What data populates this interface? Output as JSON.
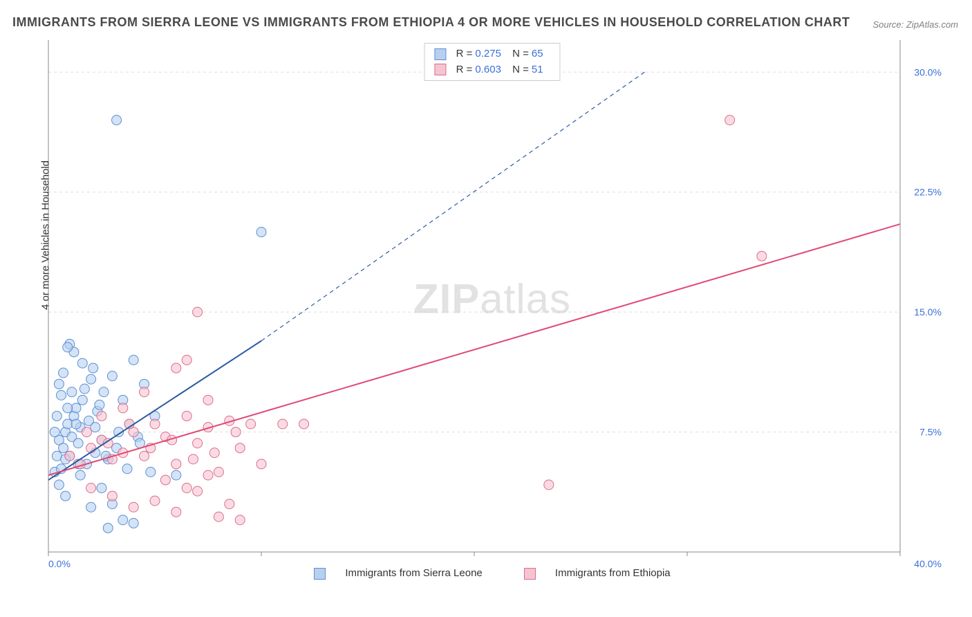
{
  "title": "IMMIGRANTS FROM SIERRA LEONE VS IMMIGRANTS FROM ETHIOPIA 4 OR MORE VEHICLES IN HOUSEHOLD CORRELATION CHART",
  "source": "Source: ZipAtlas.com",
  "ylabel": "4 or more Vehicles in Household",
  "watermark_bold": "ZIP",
  "watermark_rest": "atlas",
  "chart": {
    "type": "scatter",
    "xlim": [
      0,
      40
    ],
    "ylim": [
      0,
      32
    ],
    "x_ticks": [
      0,
      10,
      20,
      30,
      40
    ],
    "x_tick_labels": [
      "0.0%",
      "",
      "",
      "",
      "40.0%"
    ],
    "y_ticks": [
      7.5,
      15.0,
      22.5,
      30.0
    ],
    "y_tick_labels": [
      "7.5%",
      "15.0%",
      "22.5%",
      "30.0%"
    ],
    "grid_color": "#dddddd",
    "axis_color": "#888888",
    "background_color": "#ffffff",
    "tick_label_color": "#3a6fd8",
    "tick_label_fontsize": 14,
    "series": [
      {
        "name": "Immigrants from Sierra Leone",
        "color_fill": "#b8d0ee",
        "color_stroke": "#5a8fd6",
        "marker_radius": 7,
        "R": "0.275",
        "N": "65",
        "trend": {
          "x1": 0,
          "y1": 4.5,
          "x2": 10,
          "y2": 13.2,
          "x2_ext": 28,
          "y2_ext": 30,
          "solid_until_x": 10,
          "color": "#2c5aa0",
          "width": 2
        },
        "points": [
          [
            0.3,
            5.0
          ],
          [
            0.4,
            6.0
          ],
          [
            0.5,
            7.0
          ],
          [
            0.6,
            5.2
          ],
          [
            0.7,
            6.5
          ],
          [
            0.8,
            7.5
          ],
          [
            0.9,
            8.0
          ],
          [
            1.0,
            6.0
          ],
          [
            1.1,
            7.2
          ],
          [
            1.2,
            8.5
          ],
          [
            1.3,
            9.0
          ],
          [
            1.4,
            6.8
          ],
          [
            1.5,
            7.8
          ],
          [
            1.6,
            9.5
          ],
          [
            1.7,
            10.2
          ],
          [
            1.8,
            5.5
          ],
          [
            1.9,
            8.2
          ],
          [
            2.0,
            10.8
          ],
          [
            2.1,
            11.5
          ],
          [
            2.2,
            6.2
          ],
          [
            2.3,
            8.8
          ],
          [
            2.4,
            9.2
          ],
          [
            2.5,
            7.0
          ],
          [
            2.6,
            10.0
          ],
          [
            2.8,
            5.8
          ],
          [
            3.0,
            11.0
          ],
          [
            3.2,
            6.5
          ],
          [
            3.5,
            9.5
          ],
          [
            3.8,
            8.0
          ],
          [
            4.0,
            12.0
          ],
          [
            4.2,
            7.2
          ],
          [
            4.5,
            10.5
          ],
          [
            4.8,
            5.0
          ],
          [
            5.0,
            8.5
          ],
          [
            1.0,
            13.0
          ],
          [
            1.2,
            12.5
          ],
          [
            0.9,
            12.8
          ],
          [
            2.5,
            4.0
          ],
          [
            3.0,
            3.0
          ],
          [
            2.8,
            1.5
          ],
          [
            3.5,
            2.0
          ],
          [
            2.0,
            2.8
          ],
          [
            4.0,
            1.8
          ],
          [
            0.5,
            4.2
          ],
          [
            0.8,
            3.5
          ],
          [
            1.5,
            4.8
          ],
          [
            3.2,
            27.0
          ],
          [
            0.6,
            9.8
          ],
          [
            0.7,
            11.2
          ],
          [
            0.9,
            9.0
          ],
          [
            1.1,
            10.0
          ],
          [
            1.3,
            8.0
          ],
          [
            1.6,
            11.8
          ],
          [
            2.2,
            7.8
          ],
          [
            2.7,
            6.0
          ],
          [
            3.3,
            7.5
          ],
          [
            3.7,
            5.2
          ],
          [
            4.3,
            6.8
          ],
          [
            6.0,
            4.8
          ],
          [
            0.4,
            8.5
          ],
          [
            0.3,
            7.5
          ],
          [
            0.5,
            10.5
          ],
          [
            10.0,
            20.0
          ],
          [
            0.8,
            5.8
          ],
          [
            1.4,
            5.5
          ]
        ]
      },
      {
        "name": "Immigrants from Ethiopia",
        "color_fill": "#f5c4d1",
        "color_stroke": "#e06a8c",
        "marker_radius": 7,
        "R": "0.603",
        "N": "51",
        "trend": {
          "x1": 0,
          "y1": 4.8,
          "x2": 40,
          "y2": 20.5,
          "color": "#e04a74",
          "width": 2
        },
        "points": [
          [
            1.0,
            6.0
          ],
          [
            1.5,
            5.5
          ],
          [
            2.0,
            6.5
          ],
          [
            2.5,
            7.0
          ],
          [
            3.0,
            5.8
          ],
          [
            3.5,
            6.2
          ],
          [
            4.0,
            7.5
          ],
          [
            4.5,
            6.0
          ],
          [
            5.0,
            8.0
          ],
          [
            5.5,
            7.2
          ],
          [
            6.0,
            5.5
          ],
          [
            6.5,
            8.5
          ],
          [
            7.0,
            6.8
          ],
          [
            7.5,
            7.8
          ],
          [
            8.0,
            5.0
          ],
          [
            8.5,
            8.2
          ],
          [
            9.0,
            6.5
          ],
          [
            2.0,
            4.0
          ],
          [
            3.0,
            3.5
          ],
          [
            4.0,
            2.8
          ],
          [
            5.0,
            3.2
          ],
          [
            6.0,
            2.5
          ],
          [
            7.0,
            3.8
          ],
          [
            8.0,
            2.2
          ],
          [
            5.5,
            4.5
          ],
          [
            6.5,
            4.0
          ],
          [
            7.5,
            4.8
          ],
          [
            8.5,
            3.0
          ],
          [
            9.0,
            2.0
          ],
          [
            4.5,
            10.0
          ],
          [
            6.0,
            11.5
          ],
          [
            7.5,
            9.5
          ],
          [
            9.5,
            8.0
          ],
          [
            10.0,
            5.5
          ],
          [
            11.0,
            8.0
          ],
          [
            7.0,
            15.0
          ],
          [
            2.5,
            8.5
          ],
          [
            3.5,
            9.0
          ],
          [
            1.8,
            7.5
          ],
          [
            2.8,
            6.8
          ],
          [
            3.8,
            8.0
          ],
          [
            4.8,
            6.5
          ],
          [
            5.8,
            7.0
          ],
          [
            6.8,
            5.8
          ],
          [
            7.8,
            6.2
          ],
          [
            8.8,
            7.5
          ],
          [
            32.0,
            27.0
          ],
          [
            33.5,
            18.5
          ],
          [
            23.5,
            4.2
          ],
          [
            12.0,
            8.0
          ],
          [
            6.5,
            12.0
          ]
        ]
      }
    ],
    "legend_bottom": [
      {
        "label": "Immigrants from Sierra Leone",
        "fill": "#b8d0ee",
        "stroke": "#5a8fd6"
      },
      {
        "label": "Immigrants from Ethiopia",
        "fill": "#f5c4d1",
        "stroke": "#e06a8c"
      }
    ]
  }
}
